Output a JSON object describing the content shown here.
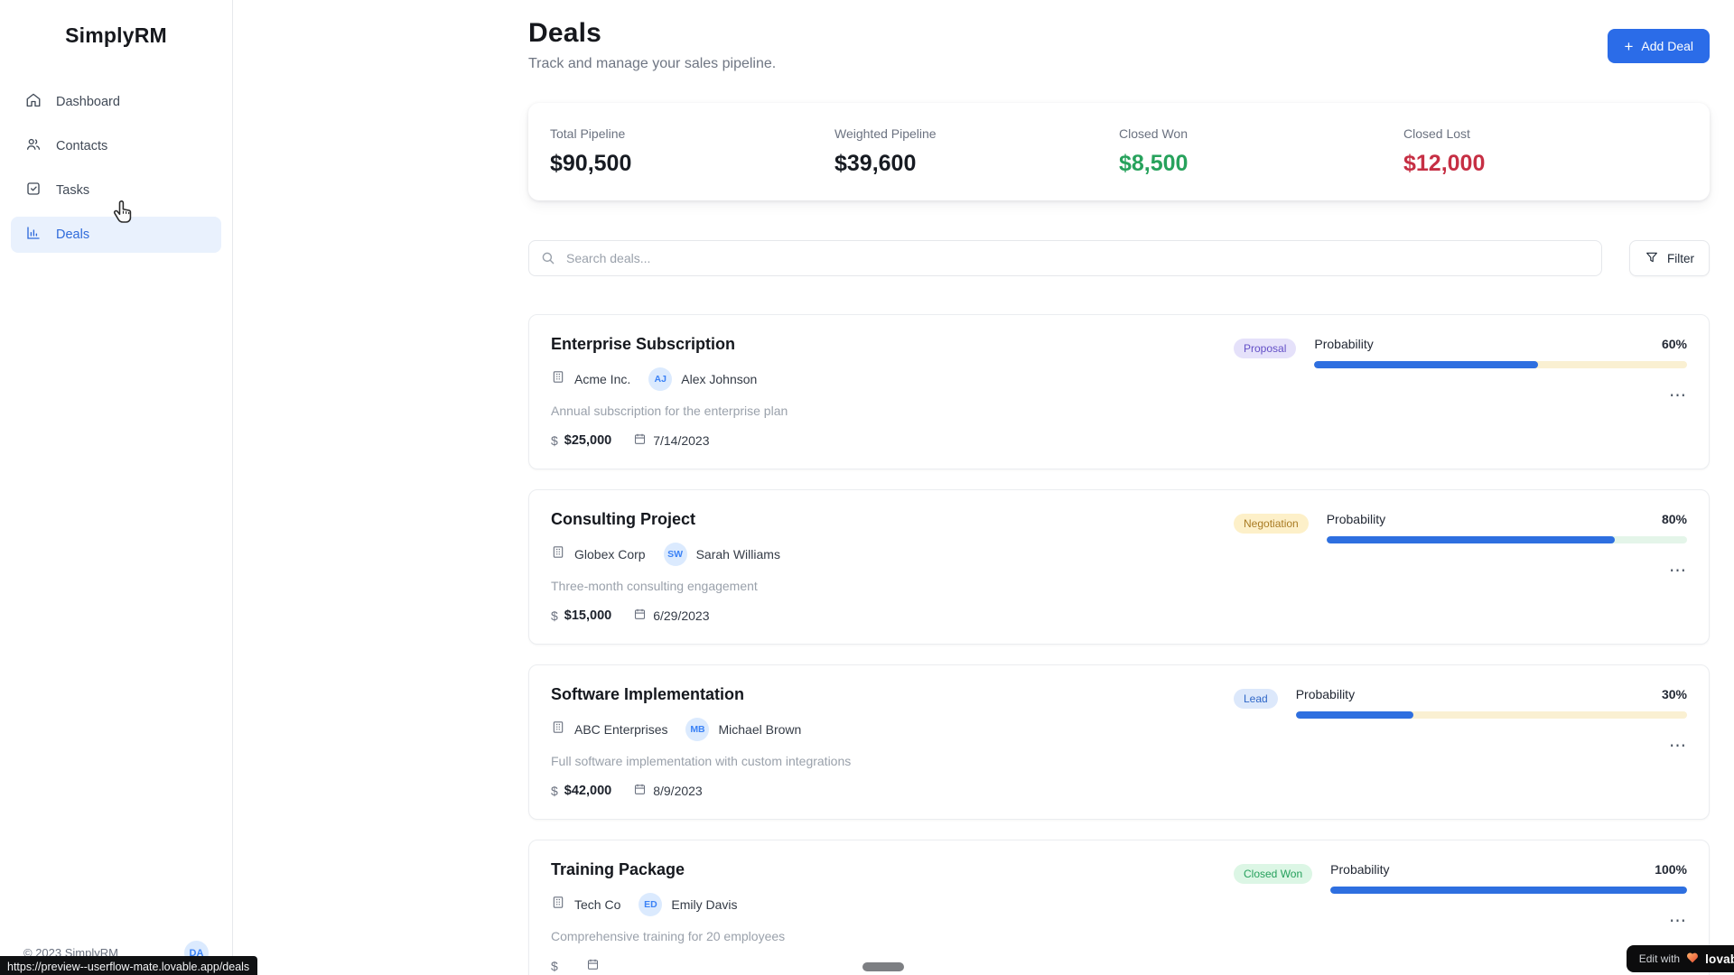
{
  "app": {
    "name": "SimplyRM"
  },
  "sidebar": {
    "items": [
      {
        "label": "Dashboard",
        "icon": "home-icon",
        "active": false
      },
      {
        "label": "Contacts",
        "icon": "users-icon",
        "active": false
      },
      {
        "label": "Tasks",
        "icon": "check-square-icon",
        "active": false
      },
      {
        "label": "Deals",
        "icon": "bar-chart-icon",
        "active": true
      }
    ]
  },
  "header": {
    "title": "Deals",
    "subtitle": "Track and manage your sales pipeline.",
    "add_icon": "+",
    "add_label": "Add Deal"
  },
  "stats": [
    {
      "label": "Total Pipeline",
      "value": "$90,500"
    },
    {
      "label": "Weighted Pipeline",
      "value": "$39,600"
    },
    {
      "label": "Closed Won",
      "value": "$8,500",
      "color": "#27a25c"
    },
    {
      "label": "Closed Lost",
      "value": "$12,000",
      "color": "#c62f44"
    }
  ],
  "toolbar": {
    "search_placeholder": "Search deals...",
    "filter_label": "Filter"
  },
  "labels": {
    "probability": "Probability",
    "more": "⋯",
    "dollar": "$"
  },
  "deals": [
    {
      "title": "Enterprise Subscription",
      "company": "Acme Inc.",
      "contact_initials": "AJ",
      "contact_name": "Alex Johnson",
      "description": "Annual subscription for the enterprise plan",
      "amount": "$25,000",
      "date": "7/14/2023",
      "stage": "Proposal",
      "probability_pct": "60%",
      "probability_value": 60
    },
    {
      "title": "Consulting Project",
      "company": "Globex Corp",
      "contact_initials": "SW",
      "contact_name": "Sarah Williams",
      "description": "Three-month consulting engagement",
      "amount": "$15,000",
      "date": "6/29/2023",
      "stage": "Negotiation",
      "probability_pct": "80%",
      "probability_value": 80
    },
    {
      "title": "Software Implementation",
      "company": "ABC Enterprises",
      "contact_initials": "MB",
      "contact_name": "Michael Brown",
      "description": "Full software implementation with custom integrations",
      "amount": "$42,000",
      "date": "8/9/2023",
      "stage": "Lead",
      "probability_pct": "30%",
      "probability_value": 30
    },
    {
      "title": "Training Package",
      "company": "Tech Co",
      "contact_initials": "ED",
      "contact_name": "Emily Davis",
      "description": "Comprehensive training for 20 employees",
      "amount": "",
      "date": "",
      "stage": "Closed Won",
      "probability_pct": "100%",
      "probability_value": 100
    }
  ],
  "footer": {
    "copyright": "© 2023 SimplyRM",
    "avatar_initials": "DA",
    "url_tooltip": "https://preview--userflow-mate.lovable.app/deals",
    "badge_prefix": "Edit with",
    "badge_brand": "lovable"
  },
  "colors": {
    "primary": "#2b6ce8",
    "progress_fill": "#2e6fe0",
    "closed_won_text": "#27a25c",
    "closed_lost_text": "#c62f44",
    "stage_proposal_bg": "#e5e1fa",
    "stage_proposal_text": "#6450c7",
    "stage_negotiation_bg": "#fdf0c9",
    "stage_negotiation_text": "#a97b23",
    "stage_lead_bg": "#dce8fb",
    "stage_lead_text": "#3068c8",
    "stage_closed_won_bg": "#dcf6e5",
    "stage_closed_won_text": "#25a05c",
    "track_cream": "#faf0d2",
    "track_mint": "#e4f5e9",
    "avatar_bg": "#dbeafe",
    "avatar_text": "#3b82f6"
  }
}
